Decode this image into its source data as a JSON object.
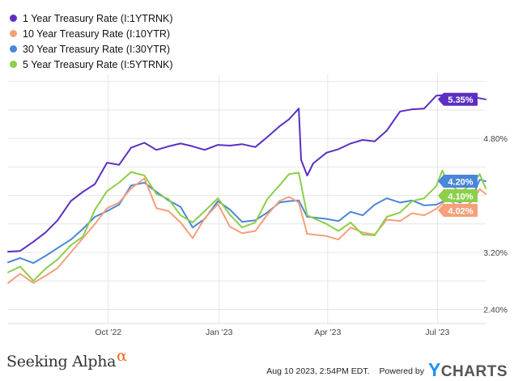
{
  "legend": [
    {
      "label": "1 Year Treasury Rate (I:1YTRNK)",
      "color": "#5c2fc2"
    },
    {
      "label": "10 Year Treasury Rate (I:10YTR)",
      "color": "#f5a07a"
    },
    {
      "label": "30 Year Treasury Rate (I:30YTR)",
      "color": "#4a86d9"
    },
    {
      "label": "5 Year Treasury Rate (I:5YTRNK)",
      "color": "#8ccf4a"
    }
  ],
  "footer": {
    "brand": "Seeking Alpha",
    "brand_symbol": "α",
    "timestamp": "Aug 10 2023, 2:54PM EDT.",
    "powered_by": "Powered by",
    "ycharts_y": "Y",
    "ycharts_rest": "CHARTS"
  },
  "chart_data": {
    "type": "line",
    "x_tick_labels": [
      "Oct '22",
      "Jan '23",
      "Apr '23",
      "Jul '23"
    ],
    "x_ticks": [
      "2022-10-01",
      "2023-01-01",
      "2023-04-01",
      "2023-07-01"
    ],
    "xlim": [
      "2022-07-10",
      "2023-08-10"
    ],
    "y_tick_labels": [
      "2.40%",
      "3.20%",
      "4.80%"
    ],
    "y_ticks": [
      2.4,
      3.2,
      4.8
    ],
    "ylim": [
      2.2,
      5.7
    ],
    "grid": true,
    "legend_position": "top-left",
    "series": [
      {
        "name": "1 Year Treasury Rate (I:1YTRNK)",
        "color": "#5c2fc2",
        "last_label": "5.35%",
        "points": [
          [
            "2022-07-10",
            3.21
          ],
          [
            "2022-07-20",
            3.22
          ],
          [
            "2022-07-31",
            3.35
          ],
          [
            "2022-08-10",
            3.48
          ],
          [
            "2022-08-20",
            3.65
          ],
          [
            "2022-08-31",
            3.92
          ],
          [
            "2022-09-10",
            4.05
          ],
          [
            "2022-09-20",
            4.16
          ],
          [
            "2022-09-30",
            4.46
          ],
          [
            "2022-10-10",
            4.43
          ],
          [
            "2022-10-20",
            4.67
          ],
          [
            "2022-10-31",
            4.74
          ],
          [
            "2022-11-10",
            4.64
          ],
          [
            "2022-11-20",
            4.69
          ],
          [
            "2022-11-30",
            4.73
          ],
          [
            "2022-12-10",
            4.69
          ],
          [
            "2022-12-20",
            4.64
          ],
          [
            "2022-12-31",
            4.71
          ],
          [
            "2023-01-10",
            4.7
          ],
          [
            "2023-01-20",
            4.72
          ],
          [
            "2023-01-31",
            4.68
          ],
          [
            "2023-02-10",
            4.82
          ],
          [
            "2023-02-20",
            4.97
          ],
          [
            "2023-02-28",
            5.07
          ],
          [
            "2023-03-08",
            5.22
          ],
          [
            "2023-03-10",
            4.5
          ],
          [
            "2023-03-15",
            4.28
          ],
          [
            "2023-03-20",
            4.45
          ],
          [
            "2023-03-31",
            4.6
          ],
          [
            "2023-04-10",
            4.65
          ],
          [
            "2023-04-20",
            4.73
          ],
          [
            "2023-04-30",
            4.78
          ],
          [
            "2023-05-10",
            4.76
          ],
          [
            "2023-05-20",
            4.91
          ],
          [
            "2023-05-31",
            5.18
          ],
          [
            "2023-06-10",
            5.21
          ],
          [
            "2023-06-20",
            5.22
          ],
          [
            "2023-06-30",
            5.4
          ],
          [
            "2023-07-10",
            5.42
          ],
          [
            "2023-07-20",
            5.37
          ],
          [
            "2023-07-31",
            5.38
          ],
          [
            "2023-08-10",
            5.35
          ]
        ]
      },
      {
        "name": "30 Year Treasury Rate (I:30YTR)",
        "color": "#4a86d9",
        "last_label": "4.20%",
        "points": [
          [
            "2022-07-10",
            3.06
          ],
          [
            "2022-07-20",
            3.12
          ],
          [
            "2022-07-31",
            3.05
          ],
          [
            "2022-08-10",
            3.15
          ],
          [
            "2022-08-20",
            3.26
          ],
          [
            "2022-08-31",
            3.38
          ],
          [
            "2022-09-10",
            3.53
          ],
          [
            "2022-09-20",
            3.7
          ],
          [
            "2022-09-30",
            3.78
          ],
          [
            "2022-10-10",
            3.87
          ],
          [
            "2022-10-20",
            4.14
          ],
          [
            "2022-10-31",
            4.18
          ],
          [
            "2022-11-10",
            4.05
          ],
          [
            "2022-11-20",
            3.93
          ],
          [
            "2022-11-30",
            3.84
          ],
          [
            "2022-12-10",
            3.55
          ],
          [
            "2022-12-20",
            3.67
          ],
          [
            "2022-12-31",
            3.92
          ],
          [
            "2023-01-10",
            3.8
          ],
          [
            "2023-01-20",
            3.63
          ],
          [
            "2023-01-31",
            3.65
          ],
          [
            "2023-02-10",
            3.76
          ],
          [
            "2023-02-20",
            3.9
          ],
          [
            "2023-02-28",
            3.92
          ],
          [
            "2023-03-08",
            3.93
          ],
          [
            "2023-03-15",
            3.7
          ],
          [
            "2023-03-31",
            3.67
          ],
          [
            "2023-04-10",
            3.64
          ],
          [
            "2023-04-20",
            3.77
          ],
          [
            "2023-04-30",
            3.72
          ],
          [
            "2023-05-10",
            3.87
          ],
          [
            "2023-05-20",
            3.96
          ],
          [
            "2023-05-31",
            3.9
          ],
          [
            "2023-06-10",
            3.93
          ],
          [
            "2023-06-20",
            3.86
          ],
          [
            "2023-06-30",
            3.87
          ],
          [
            "2023-07-10",
            3.95
          ],
          [
            "2023-07-20",
            3.9
          ],
          [
            "2023-07-31",
            4.02
          ],
          [
            "2023-08-05",
            4.22
          ],
          [
            "2023-08-10",
            4.2
          ]
        ]
      },
      {
        "name": "10 Year Treasury Rate (I:10YTR)",
        "color": "#f5a07a",
        "last_label": "4.02%",
        "points": [
          [
            "2022-07-10",
            2.77
          ],
          [
            "2022-07-20",
            2.9
          ],
          [
            "2022-07-31",
            2.77
          ],
          [
            "2022-08-10",
            2.87
          ],
          [
            "2022-08-20",
            2.98
          ],
          [
            "2022-08-31",
            3.2
          ],
          [
            "2022-09-10",
            3.4
          ],
          [
            "2022-09-20",
            3.6
          ],
          [
            "2022-09-30",
            3.82
          ],
          [
            "2022-10-10",
            3.9
          ],
          [
            "2022-10-20",
            4.1
          ],
          [
            "2022-10-31",
            4.24
          ],
          [
            "2022-11-10",
            3.82
          ],
          [
            "2022-11-20",
            3.78
          ],
          [
            "2022-11-30",
            3.62
          ],
          [
            "2022-12-10",
            3.4
          ],
          [
            "2022-12-20",
            3.68
          ],
          [
            "2022-12-31",
            3.88
          ],
          [
            "2023-01-10",
            3.56
          ],
          [
            "2023-01-20",
            3.47
          ],
          [
            "2023-01-31",
            3.5
          ],
          [
            "2023-02-10",
            3.73
          ],
          [
            "2023-02-20",
            3.92
          ],
          [
            "2023-02-28",
            3.98
          ],
          [
            "2023-03-08",
            3.9
          ],
          [
            "2023-03-15",
            3.46
          ],
          [
            "2023-03-31",
            3.43
          ],
          [
            "2023-04-10",
            3.38
          ],
          [
            "2023-04-20",
            3.55
          ],
          [
            "2023-04-30",
            3.48
          ],
          [
            "2023-05-10",
            3.45
          ],
          [
            "2023-05-20",
            3.66
          ],
          [
            "2023-05-31",
            3.64
          ],
          [
            "2023-06-10",
            3.75
          ],
          [
            "2023-06-20",
            3.72
          ],
          [
            "2023-06-30",
            3.81
          ],
          [
            "2023-07-10",
            3.96
          ],
          [
            "2023-07-20",
            3.8
          ],
          [
            "2023-07-31",
            3.93
          ],
          [
            "2023-08-05",
            4.09
          ],
          [
            "2023-08-10",
            4.02
          ]
        ]
      },
      {
        "name": "5 Year Treasury Rate (I:5YTRNK)",
        "color": "#8ccf4a",
        "last_label": "4.10%",
        "points": [
          [
            "2022-07-10",
            2.92
          ],
          [
            "2022-07-20",
            3.0
          ],
          [
            "2022-07-31",
            2.8
          ],
          [
            "2022-08-10",
            2.97
          ],
          [
            "2022-08-20",
            3.1
          ],
          [
            "2022-08-31",
            3.3
          ],
          [
            "2022-09-10",
            3.42
          ],
          [
            "2022-09-20",
            3.8
          ],
          [
            "2022-09-30",
            4.06
          ],
          [
            "2022-10-10",
            4.18
          ],
          [
            "2022-10-20",
            4.33
          ],
          [
            "2022-10-31",
            4.28
          ],
          [
            "2022-11-10",
            4.02
          ],
          [
            "2022-11-20",
            3.95
          ],
          [
            "2022-11-30",
            3.72
          ],
          [
            "2022-12-10",
            3.62
          ],
          [
            "2022-12-20",
            3.78
          ],
          [
            "2022-12-31",
            3.96
          ],
          [
            "2023-01-10",
            3.73
          ],
          [
            "2023-01-20",
            3.55
          ],
          [
            "2023-01-31",
            3.62
          ],
          [
            "2023-02-10",
            3.95
          ],
          [
            "2023-02-20",
            4.14
          ],
          [
            "2023-02-28",
            4.3
          ],
          [
            "2023-03-08",
            4.32
          ],
          [
            "2023-03-15",
            3.72
          ],
          [
            "2023-03-31",
            3.6
          ],
          [
            "2023-04-10",
            3.5
          ],
          [
            "2023-04-20",
            3.62
          ],
          [
            "2023-04-30",
            3.45
          ],
          [
            "2023-05-10",
            3.44
          ],
          [
            "2023-05-20",
            3.7
          ],
          [
            "2023-05-31",
            3.76
          ],
          [
            "2023-06-10",
            3.92
          ],
          [
            "2023-06-20",
            3.96
          ],
          [
            "2023-06-30",
            4.13
          ],
          [
            "2023-07-05",
            4.35
          ],
          [
            "2023-07-10",
            4.18
          ],
          [
            "2023-07-20",
            4.04
          ],
          [
            "2023-07-31",
            4.18
          ],
          [
            "2023-08-05",
            4.3
          ],
          [
            "2023-08-10",
            4.1
          ]
        ]
      }
    ]
  }
}
